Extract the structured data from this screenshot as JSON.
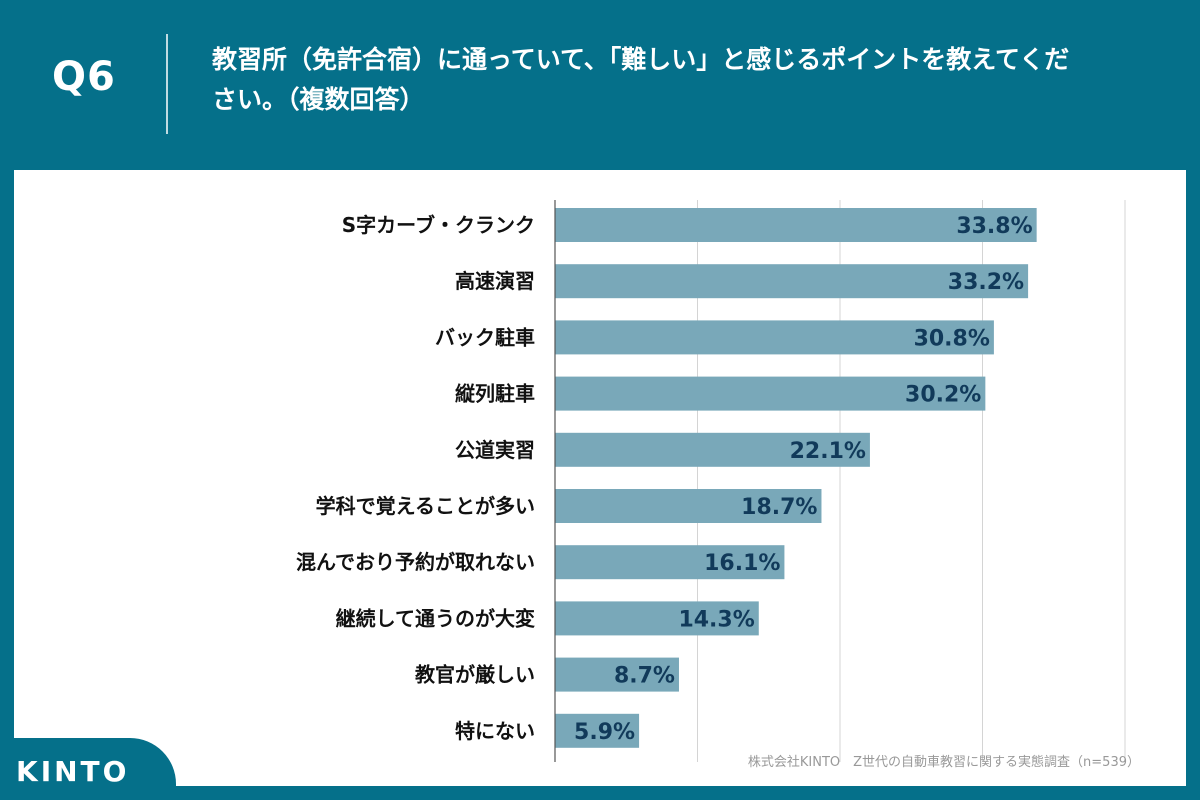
{
  "header": {
    "question_number": "Q6",
    "question_text": "教習所（免許合宿）に通っていて、「難しい」と感じるポイントを教えてください。（複数回答）"
  },
  "chart_data": {
    "type": "bar",
    "orientation": "horizontal",
    "categories": [
      "S字カーブ・クランク",
      "高速演習",
      "バック駐車",
      "縦列駐車",
      "公道実習",
      "学科で覚えることが多い",
      "混んでおり予約が取れない",
      "継続して通うのが大変",
      "教官が厳しい",
      "特にない"
    ],
    "values": [
      33.8,
      33.2,
      30.8,
      30.2,
      22.1,
      18.7,
      16.1,
      14.3,
      8.7,
      5.9
    ],
    "value_labels": [
      "33.8%",
      "33.2%",
      "30.8%",
      "30.2%",
      "22.1%",
      "18.7%",
      "16.1%",
      "14.3%",
      "8.7%",
      "5.9%"
    ],
    "unit": "%",
    "xlim": [
      0,
      40
    ],
    "grid_step": 10,
    "grid": true,
    "bar_color": "#79a8b9",
    "label_color": "#113a5a"
  },
  "footer": {
    "source": "株式会社KINTO　Z世代の自動車教習に関する実態調査（n=539）",
    "logo": "KINTO"
  }
}
